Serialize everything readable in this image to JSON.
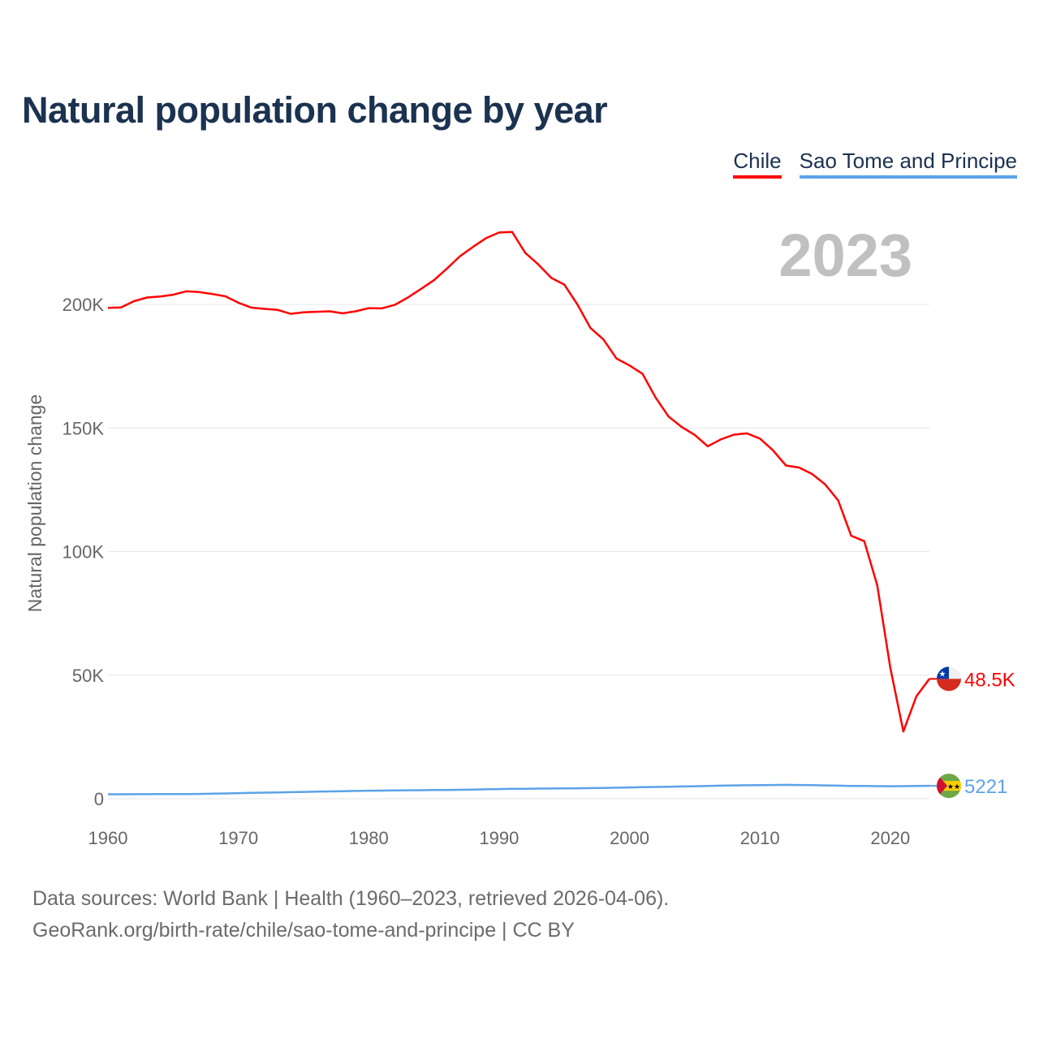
{
  "chart_data": {
    "type": "line",
    "title": "Natural population change by year",
    "xlabel": "",
    "ylabel": "Natural population change",
    "xlim": [
      1960,
      2023
    ],
    "ylim": [
      0,
      230000
    ],
    "x_ticks": [
      1960,
      1970,
      1980,
      1990,
      2000,
      2010,
      2020
    ],
    "x_tick_labels": [
      "1960",
      "1970",
      "1980",
      "1990",
      "2000",
      "2010",
      "2020"
    ],
    "y_ticks": [
      0,
      50000,
      100000,
      150000,
      200000
    ],
    "y_tick_labels": [
      "0",
      "50K",
      "100K",
      "150K",
      "200K"
    ],
    "grid": true,
    "legend_position": "top-right",
    "year_label": "2023",
    "x": [
      1960,
      1961,
      1962,
      1963,
      1964,
      1965,
      1966,
      1967,
      1968,
      1969,
      1970,
      1971,
      1972,
      1973,
      1974,
      1975,
      1976,
      1977,
      1978,
      1979,
      1980,
      1981,
      1982,
      1983,
      1984,
      1985,
      1986,
      1987,
      1988,
      1989,
      1990,
      1991,
      1992,
      1993,
      1994,
      1995,
      1996,
      1997,
      1998,
      1999,
      2000,
      2001,
      2002,
      2003,
      2004,
      2005,
      2006,
      2007,
      2008,
      2009,
      2010,
      2011,
      2012,
      2013,
      2014,
      2015,
      2016,
      2017,
      2018,
      2019,
      2020,
      2021,
      2022,
      2023
    ],
    "series": [
      {
        "name": "Chile",
        "color": "#ff0000",
        "end_label": "48.5K",
        "flag": "chile-flag",
        "values": [
          198600,
          198800,
          201300,
          202800,
          203200,
          203900,
          205300,
          205000,
          204200,
          203300,
          200700,
          198700,
          198200,
          197800,
          196200,
          196800,
          197000,
          197200,
          196400,
          197200,
          198500,
          198400,
          199800,
          202800,
          206200,
          209800,
          214500,
          219500,
          223300,
          226800,
          229100,
          229300,
          220900,
          216200,
          210700,
          208000,
          200000,
          190500,
          185800,
          178100,
          175300,
          171900,
          162300,
          154600,
          150400,
          147200,
          142600,
          145400,
          147300,
          147800,
          145700,
          141000,
          134800,
          134000,
          131400,
          127200,
          120700,
          106400,
          104200,
          86400,
          53000,
          27200,
          41400,
          48500
        ]
      },
      {
        "name": "Sao Tome and Principe",
        "color": "#5ba3e8",
        "end_label": "5221",
        "flag": "sao-tome-flag",
        "values": [
          1800,
          1820,
          1840,
          1850,
          1860,
          1870,
          1880,
          1950,
          2050,
          2150,
          2250,
          2350,
          2450,
          2550,
          2650,
          2750,
          2850,
          2950,
          3050,
          3150,
          3250,
          3300,
          3350,
          3400,
          3450,
          3500,
          3500,
          3600,
          3700,
          3800,
          3900,
          4000,
          4050,
          4100,
          4150,
          4200,
          4250,
          4300,
          4350,
          4450,
          4550,
          4650,
          4750,
          4850,
          4950,
          5050,
          5150,
          5300,
          5400,
          5450,
          5500,
          5550,
          5600,
          5550,
          5500,
          5400,
          5300,
          5200,
          5150,
          5100,
          5050,
          5100,
          5200,
          5221
        ]
      }
    ]
  },
  "source": {
    "line1": "Data sources: World Bank | Health (1960–2023, retrieved 2026-04-06).",
    "line2": "GeoRank.org/birth-rate/chile/sao-tome-and-principe | CC BY"
  }
}
